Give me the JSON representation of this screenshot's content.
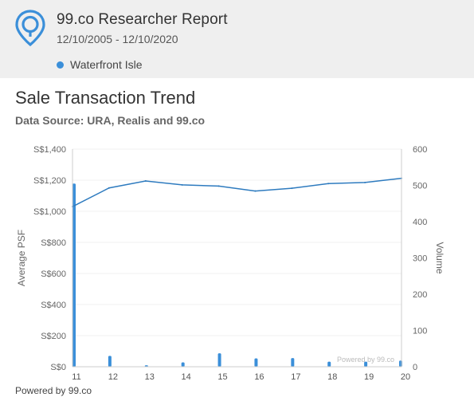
{
  "header": {
    "title": "99.co Researcher Report",
    "date_range": "12/10/2005 - 12/10/2020",
    "legend": [
      {
        "label": "Waterfront Isle",
        "color": "#3b8fd9"
      }
    ]
  },
  "section": {
    "title": "Sale Transaction Trend",
    "source": "Data Source: URA, Realis and 99.co"
  },
  "chart_data": {
    "type": "line",
    "categories": [
      "11",
      "12",
      "13",
      "14",
      "15",
      "16",
      "17",
      "18",
      "19",
      "20"
    ],
    "ylabel_left": "Average PSF",
    "ylabel_right": "Volume",
    "y_left_ticks": [
      "S$0",
      "S$200",
      "S$400",
      "S$600",
      "S$800",
      "S$1,000",
      "S$1,200",
      "S$1,400"
    ],
    "y_left_range": [
      0,
      1400
    ],
    "y_right_ticks": [
      "0",
      "100",
      "200",
      "300",
      "400",
      "500",
      "600"
    ],
    "y_right_range": [
      0,
      600
    ],
    "series": [
      {
        "axis": "left",
        "type": "line",
        "color": "#2e7bbf",
        "values": [
          1030,
          1150,
          1195,
          1170,
          1162,
          1130,
          1148,
          1178,
          1185,
          1212
        ]
      },
      {
        "axis": "right",
        "type": "bar",
        "color": "#3b8fd9",
        "values": [
          505,
          30,
          4,
          12,
          37,
          23,
          24,
          14,
          14,
          17
        ]
      }
    ],
    "watermark": "Powered by 99.co",
    "grid": true
  },
  "footer": {
    "powered": "Powered by 99.co"
  },
  "colors": {
    "accent": "#3b8fd9",
    "line": "#2e7bbf",
    "header_bg": "#efefef"
  }
}
